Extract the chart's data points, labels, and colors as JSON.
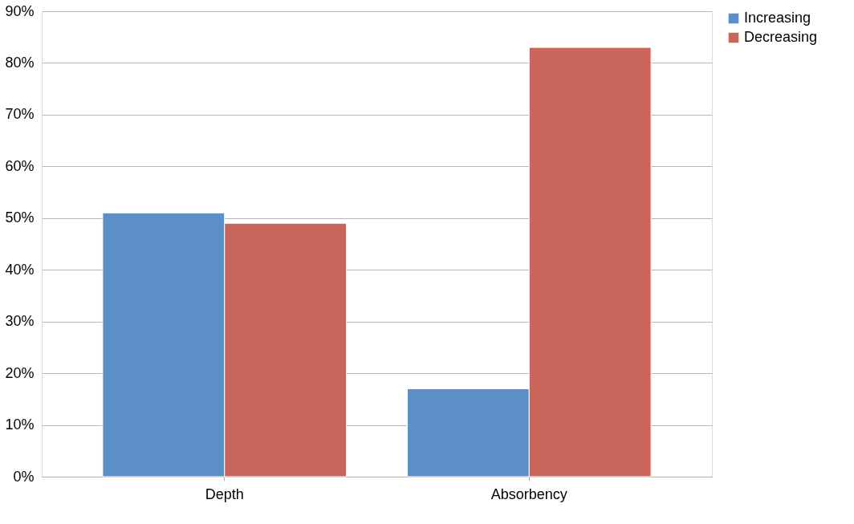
{
  "chart_data": {
    "type": "bar",
    "categories": [
      "Depth",
      "Absorbency"
    ],
    "series": [
      {
        "name": "Increasing",
        "color": "#5b8fc5",
        "values": [
          51,
          17
        ]
      },
      {
        "name": "Decreasing",
        "color": "#c9655b",
        "values": [
          49,
          83
        ]
      }
    ],
    "ylim": [
      0,
      90
    ],
    "yticks": [
      {
        "value": 0,
        "label": "0%"
      },
      {
        "value": 10,
        "label": "10%"
      },
      {
        "value": 20,
        "label": "20%"
      },
      {
        "value": 30,
        "label": "30%"
      },
      {
        "value": 40,
        "label": "40%"
      },
      {
        "value": 50,
        "label": "50%"
      },
      {
        "value": 60,
        "label": "60%"
      },
      {
        "value": 70,
        "label": "70%"
      },
      {
        "value": 80,
        "label": "80%"
      },
      {
        "value": 90,
        "label": "90%"
      }
    ],
    "grid": "y",
    "legend": "right"
  }
}
